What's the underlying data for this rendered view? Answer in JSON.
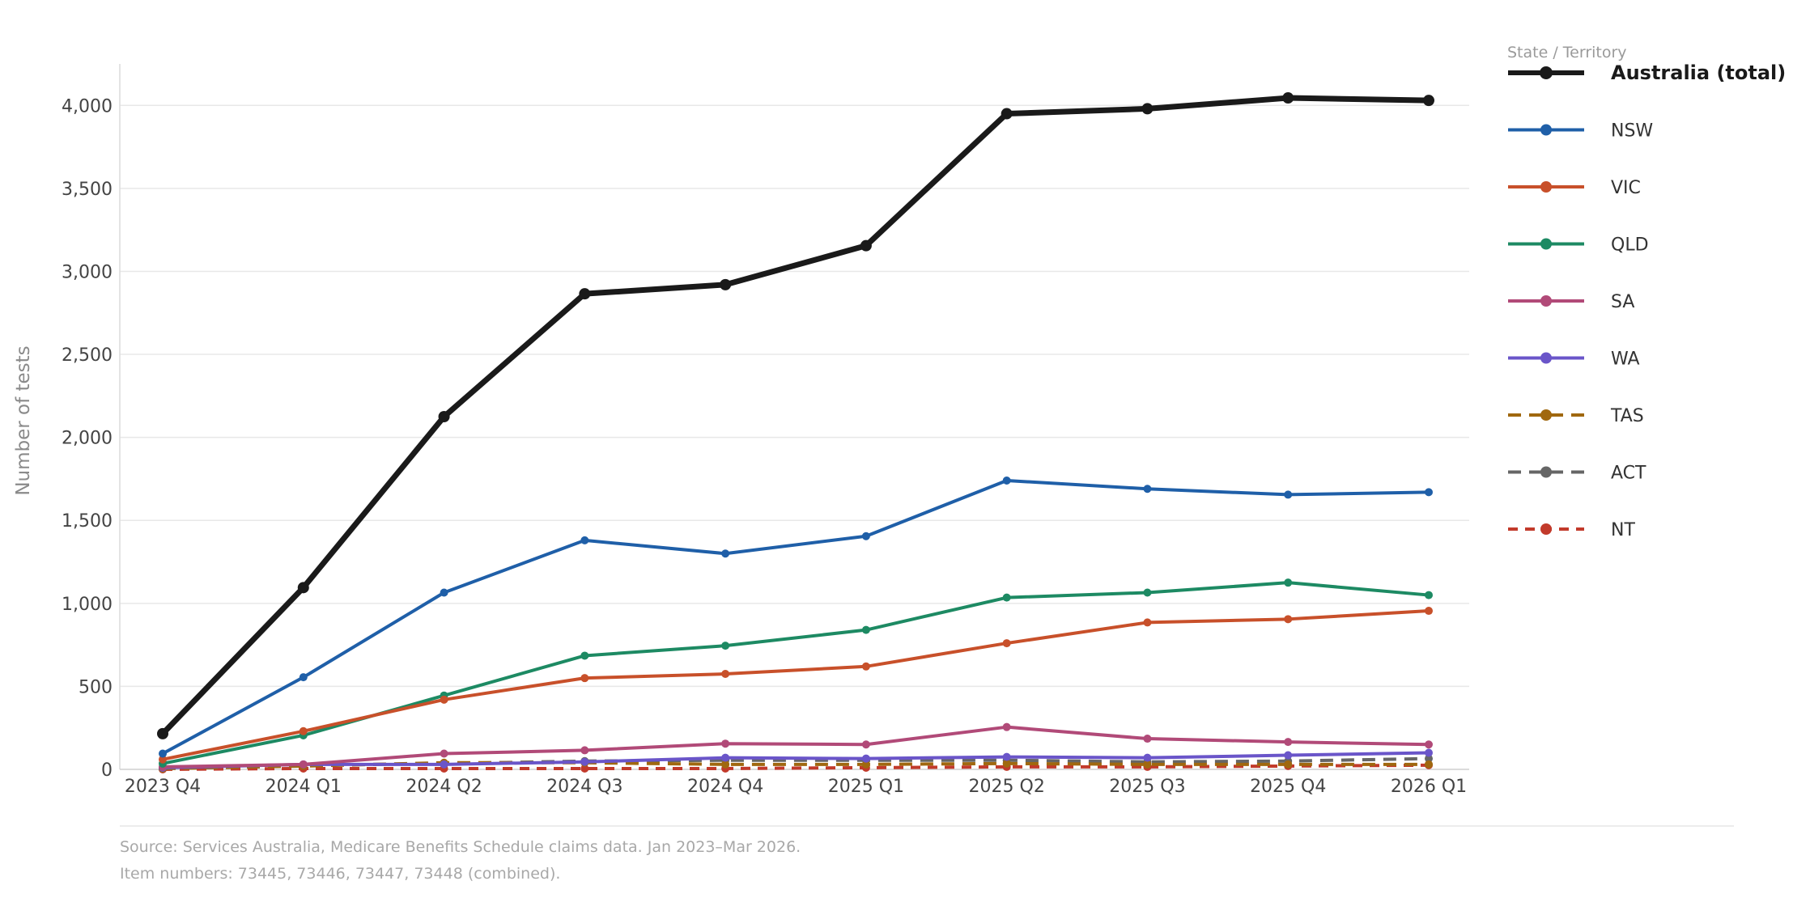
{
  "chart_data": {
    "type": "line",
    "title": "",
    "xlabel": "",
    "ylabel": "Number of tests",
    "ylim": [
      0,
      4250
    ],
    "yticks": [
      0,
      500,
      1000,
      1500,
      2000,
      2500,
      3000,
      3500,
      4000
    ],
    "ytick_labels": [
      "0",
      "500",
      "1,000",
      "1,500",
      "2,000",
      "2,500",
      "3,000",
      "3,500",
      "4,000"
    ],
    "grid": "horizontal",
    "legend_title": "State / Territory",
    "legend_position": "right",
    "categories": [
      "2023 Q4",
      "2024 Q1",
      "2024 Q2",
      "2024 Q3",
      "2024 Q4",
      "2025 Q1",
      "2025 Q2",
      "2025 Q3",
      "2025 Q4",
      "2026 Q1"
    ],
    "series": [
      {
        "name": "Australia (total)",
        "color": "#1a1a1a",
        "dash": "solid",
        "bold": true,
        "values": [
          215,
          1095,
          2125,
          2865,
          2920,
          3155,
          3950,
          3980,
          4045,
          4030
        ]
      },
      {
        "name": "NSW",
        "color": "#1f5fa8",
        "dash": "solid",
        "values": [
          95,
          555,
          1065,
          1380,
          1300,
          1405,
          1740,
          1690,
          1655,
          1670
        ]
      },
      {
        "name": "VIC",
        "color": "#c8502a",
        "dash": "solid",
        "values": [
          60,
          230,
          420,
          550,
          575,
          620,
          760,
          885,
          905,
          955
        ]
      },
      {
        "name": "QLD",
        "color": "#1d8a63",
        "dash": "solid",
        "values": [
          35,
          205,
          445,
          685,
          745,
          840,
          1035,
          1065,
          1125,
          1050
        ]
      },
      {
        "name": "SA",
        "color": "#b14a78",
        "dash": "solid",
        "values": [
          15,
          30,
          95,
          115,
          155,
          150,
          255,
          185,
          165,
          150
        ]
      },
      {
        "name": "WA",
        "color": "#6a55c9",
        "dash": "solid",
        "values": [
          10,
          30,
          30,
          45,
          70,
          65,
          75,
          70,
          85,
          100
        ]
      },
      {
        "name": "TAS",
        "color": "#a0680f",
        "dash": "dashed",
        "values": [
          5,
          20,
          40,
          40,
          30,
          30,
          35,
          30,
          30,
          30
        ]
      },
      {
        "name": "ACT",
        "color": "#666666",
        "dash": "dashed",
        "values": [
          5,
          25,
          35,
          50,
          55,
          55,
          55,
          45,
          50,
          65
        ]
      },
      {
        "name": "NT",
        "color": "#c23a2b",
        "dash": "dotted",
        "values": [
          0,
          5,
          5,
          5,
          5,
          10,
          15,
          15,
          20,
          25
        ]
      }
    ]
  },
  "source_line": "Source: Services Australia, Medicare Benefits Schedule claims data. Jan 2023–Mar 2026.",
  "item_line": "Item numbers: 73445, 73446, 73447, 73448 (combined)."
}
